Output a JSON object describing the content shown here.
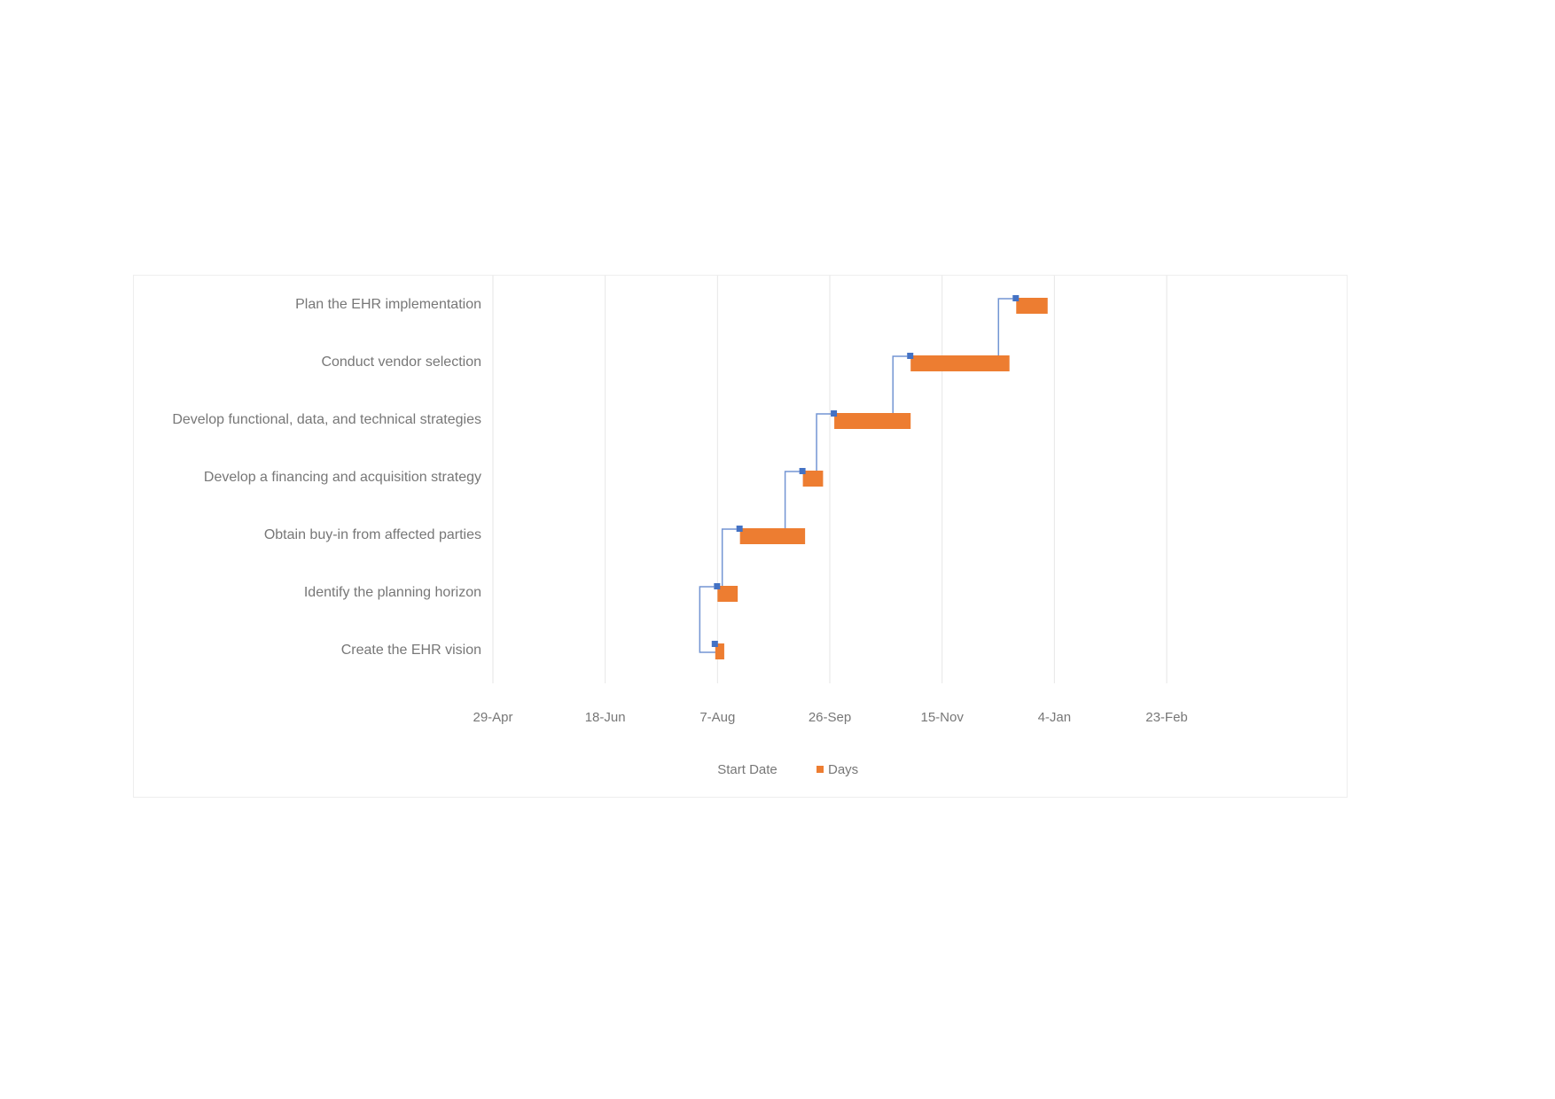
{
  "chart_data": {
    "type": "bar",
    "subtype": "gantt",
    "title": "",
    "xlabel": "",
    "ylabel": "",
    "x_axis": {
      "kind": "date",
      "ticks": [
        "2021-04-29",
        "2021-06-18",
        "2021-08-07",
        "2021-09-26",
        "2021-11-15",
        "2022-01-04",
        "2022-02-23"
      ],
      "tick_labels": [
        "29-Apr",
        "18-Jun",
        "7-Aug",
        "26-Sep",
        "15-Nov",
        "4-Jan",
        "23-Feb"
      ],
      "range": [
        "2021-04-29",
        "2022-02-23"
      ]
    },
    "categories": [
      "Create the EHR vision",
      "Identify the planning horizon",
      "Obtain buy-in from affected parties",
      "Develop a financing and acquisition strategy",
      "Develop functional, data, and technical strategies",
      "Conduct vendor selection",
      "Plan the EHR implementation"
    ],
    "series": [
      {
        "name": "Start Date",
        "color": "#4472c4",
        "values": [
          "2021-08-06",
          "2021-08-07",
          "2021-08-17",
          "2021-09-14",
          "2021-09-28",
          "2021-11-01",
          "2021-12-18"
        ]
      },
      {
        "name": "Days",
        "color": "#ed7d31",
        "values": [
          4,
          9,
          29,
          9,
          34,
          44,
          14
        ]
      }
    ],
    "dependencies": [
      {
        "from": 0,
        "to": 1
      },
      {
        "from": 1,
        "to": 2
      },
      {
        "from": 2,
        "to": 3
      },
      {
        "from": 3,
        "to": 4
      },
      {
        "from": 4,
        "to": 5
      },
      {
        "from": 5,
        "to": 6
      }
    ],
    "grid": "vertical",
    "legend": "bottom"
  }
}
